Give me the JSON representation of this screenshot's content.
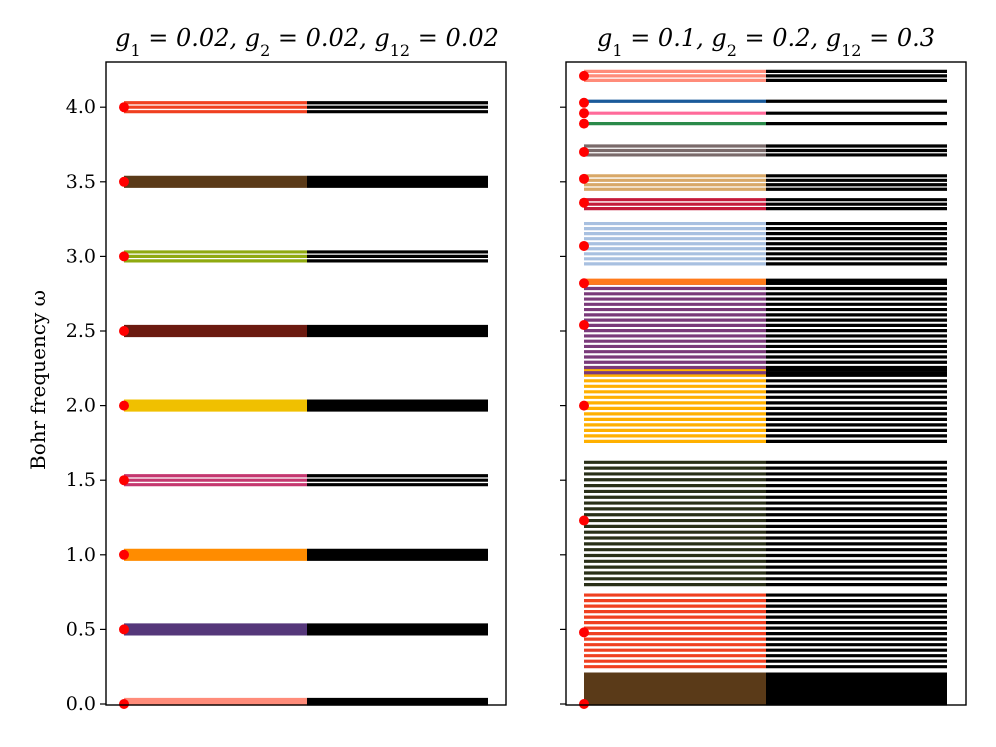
{
  "chart_data": {
    "type": "bohr-frequency-spectrum",
    "ylabel": "Bohr frequency ω",
    "ylim": [
      0,
      4.3
    ],
    "yticks": [
      "0.0",
      "0.5",
      "1.0",
      "1.5",
      "2.0",
      "2.5",
      "3.0",
      "3.5",
      "4.0"
    ],
    "grid": false,
    "panels": [
      {
        "title": "g1 = 0.02, g2 = 0.02, g12 = 0.02",
        "title_parts": [
          {
            "text": "g",
            "sub": "1"
          },
          {
            "text": " = 0.02, "
          },
          {
            "text": "g",
            "sub": "2"
          },
          {
            "text": " = 0.02, "
          },
          {
            "text": "g",
            "sub": "12"
          },
          {
            "text": " = 0.02"
          }
        ],
        "groups": [
          {
            "color": "#ff8c7a",
            "lines": [
              0.0,
              0.015,
              0.03
            ]
          },
          {
            "color": "#55377a",
            "lines": [
              0.47,
              0.48,
              0.49,
              0.5,
              0.51,
              0.52,
              0.53
            ]
          },
          {
            "color": "#ff8c00",
            "lines": [
              0.97,
              0.98,
              0.99,
              1.0,
              1.01,
              1.02,
              1.03
            ]
          },
          {
            "color": "#c4376f",
            "lines": [
              1.47,
              1.5,
              1.53
            ]
          },
          {
            "color": "#f0c000",
            "lines": [
              1.97,
              1.98,
              1.99,
              2.0,
              2.01,
              2.02,
              2.03
            ]
          },
          {
            "color": "#6b1a10",
            "lines": [
              2.47,
              2.49,
              2.51,
              2.53
            ]
          },
          {
            "color": "#8faa10",
            "lines": [
              2.97,
              3.0,
              3.03
            ]
          },
          {
            "color": "#5a3a18",
            "lines": [
              3.47,
              3.48,
              3.49,
              3.5,
              3.51,
              3.52,
              3.53
            ]
          },
          {
            "color": "#f04020",
            "lines": [
              3.97,
              4.0,
              4.03
            ]
          }
        ],
        "markers": [
          0.0,
          0.5,
          1.0,
          1.5,
          2.0,
          2.5,
          3.0,
          3.5,
          4.0
        ]
      },
      {
        "title": "g1 = 0.1, g2 = 0.2, g12 = 0.3",
        "title_parts": [
          {
            "text": "g",
            "sub": "1"
          },
          {
            "text": " = 0.1, "
          },
          {
            "text": "g",
            "sub": "2"
          },
          {
            "text": " = 0.2, "
          },
          {
            "text": "g",
            "sub": "12"
          },
          {
            "text": " = 0.3"
          }
        ],
        "groups": [
          {
            "color": "#5a3a18",
            "range": [
              0.0,
              0.2
            ],
            "count": 12
          },
          {
            "color": "#f04020",
            "range": [
              0.25,
              0.73
            ],
            "count": 14
          },
          {
            "color": "#2a3018",
            "range": [
              0.8,
              1.62
            ],
            "count": 22
          },
          {
            "color": "#ffb000",
            "range": [
              1.76,
              2.24
            ],
            "count": 14
          },
          {
            "color": "#7a3a7a",
            "range": [
              2.22,
              2.82
            ],
            "count": 18
          },
          {
            "color": "#ff7a1a",
            "lines": [
              2.82,
              2.84
            ]
          },
          {
            "color": "#a8c0e0",
            "range": [
              2.95,
              3.22
            ],
            "count": 9
          },
          {
            "color": "#c41a3a",
            "lines": [
              3.32,
              3.35,
              3.38
            ]
          },
          {
            "color": "#d8a868",
            "lines": [
              3.45,
              3.48,
              3.51,
              3.54
            ]
          },
          {
            "color": "#7a6a6a",
            "lines": [
              3.68,
              3.71,
              3.74
            ]
          },
          {
            "color": "#2a8a4a",
            "lines": [
              3.89
            ]
          },
          {
            "color": "#ff6a9a",
            "lines": [
              3.96
            ]
          },
          {
            "color": "#1a5a9a",
            "lines": [
              4.04
            ]
          },
          {
            "color": "#ff8c7a",
            "lines": [
              4.18,
              4.21,
              4.24
            ]
          }
        ],
        "markers": [
          0.0,
          0.48,
          1.23,
          2.0,
          2.54,
          2.82,
          3.07,
          3.36,
          3.52,
          3.7,
          3.89,
          3.96,
          4.03,
          4.21
        ]
      }
    ],
    "marker_color": "#ff0000",
    "right_half_color": "#000000"
  }
}
